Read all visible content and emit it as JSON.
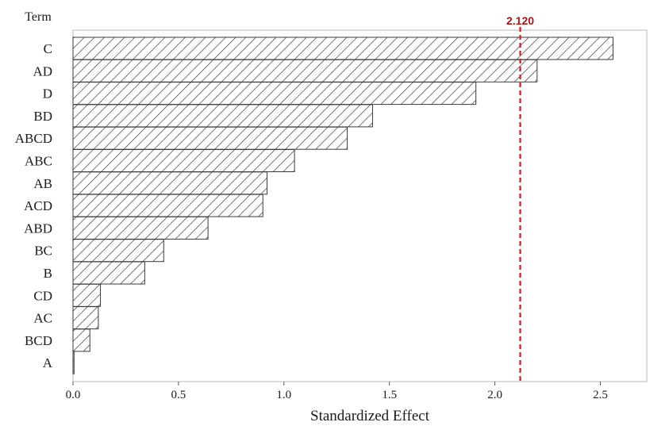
{
  "chart_data": {
    "type": "bar",
    "orientation": "horizontal",
    "categories": [
      "C",
      "AD",
      "D",
      "BD",
      "ABCD",
      "ABC",
      "AB",
      "ACD",
      "ABD",
      "BC",
      "B",
      "CD",
      "AC",
      "BCD",
      "A"
    ],
    "values": [
      2.56,
      2.2,
      1.91,
      1.42,
      1.3,
      1.05,
      0.92,
      0.9,
      0.64,
      0.43,
      0.34,
      0.13,
      0.12,
      0.08,
      0.005
    ],
    "title": "",
    "xlabel": "Standardized Effect",
    "ylabel": "Term",
    "xlim": [
      0,
      2.72
    ],
    "xticks": [
      "0.0",
      "0.5",
      "1.0",
      "1.5",
      "2.0",
      "2.5"
    ],
    "reference_line": {
      "value": 2.12,
      "label": "2.120",
      "color": "#cc1f1f",
      "style": "dashed"
    },
    "bar_fill": "hatched",
    "bar_color": "#3a3a3a",
    "grid": false,
    "legend": "none"
  }
}
